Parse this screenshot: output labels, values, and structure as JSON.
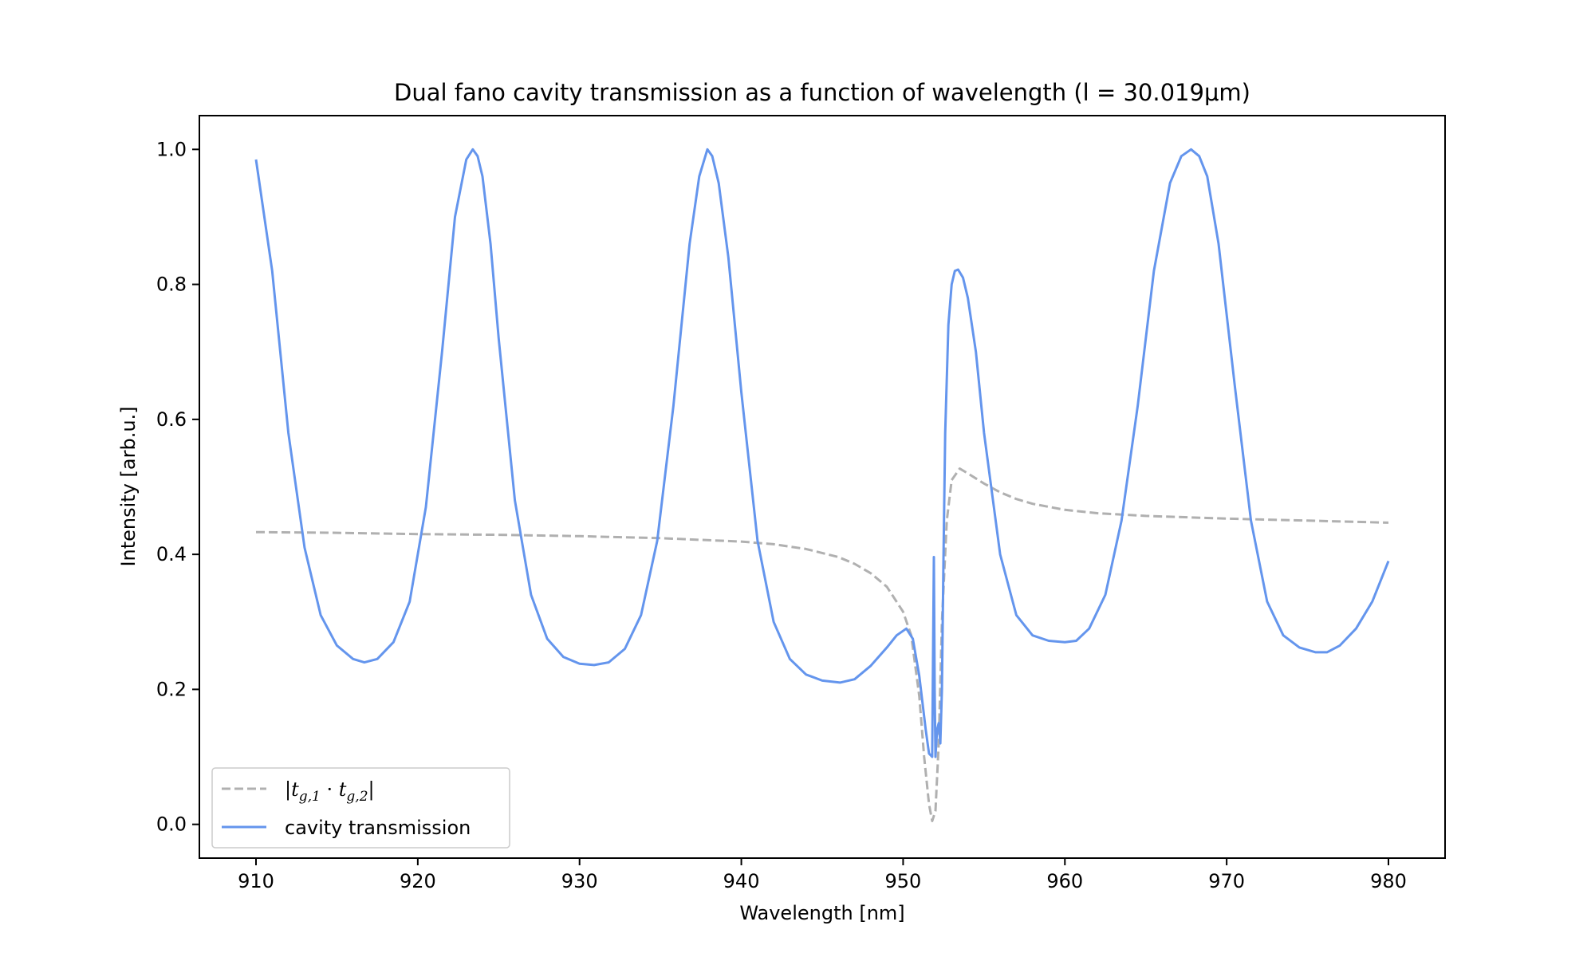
{
  "chart_data": {
    "type": "line",
    "title": "Dual fano cavity transmission as a function of wavelength (l = 30.019μm)",
    "xlabel": "Wavelength [nm]",
    "ylabel": "Intensity [arb.u.]",
    "xlim": [
      906.5,
      983.5
    ],
    "ylim": [
      -0.05,
      1.05
    ],
    "xticks": [
      910,
      920,
      930,
      940,
      950,
      960,
      970,
      980
    ],
    "xtick_labels": [
      "910",
      "920",
      "930",
      "940",
      "950",
      "960",
      "970",
      "980"
    ],
    "yticks": [
      0.0,
      0.2,
      0.4,
      0.6,
      0.8,
      1.0
    ],
    "ytick_labels": [
      "0.0",
      "0.2",
      "0.4",
      "0.6",
      "0.8",
      "1.0"
    ],
    "grid": false,
    "legend_position": "lower-left",
    "series": [
      {
        "name": "|t_{g,1} · t_{g,2}|",
        "legend_parts": {
          "bar_left": "|",
          "t1": "t",
          "sub1": "g,1",
          "dot": " · ",
          "t2": "t",
          "sub2": "g,2",
          "bar_right": "|"
        },
        "color": "#b0b0b0",
        "style": "dashed",
        "x": [
          910,
          915,
          920,
          925,
          930,
          935,
          940,
          942,
          944,
          946,
          947,
          948,
          949,
          950,
          950.5,
          951,
          951.3,
          951.6,
          951.8,
          952.0,
          952.2,
          952.4,
          952.7,
          953.0,
          953.5,
          954,
          955,
          956,
          957,
          958,
          960,
          962,
          965,
          970,
          975,
          980
        ],
        "y": [
          0.433,
          0.432,
          0.43,
          0.429,
          0.427,
          0.424,
          0.419,
          0.415,
          0.408,
          0.396,
          0.386,
          0.372,
          0.352,
          0.315,
          0.28,
          0.19,
          0.1,
          0.03,
          0.005,
          0.02,
          0.12,
          0.3,
          0.45,
          0.51,
          0.527,
          0.52,
          0.505,
          0.492,
          0.482,
          0.475,
          0.466,
          0.461,
          0.457,
          0.453,
          0.45,
          0.447
        ]
      },
      {
        "name": "cavity transmission",
        "color": "#6495ed",
        "style": "solid",
        "x": [
          910,
          911,
          912,
          913,
          914,
          915,
          916,
          916.7,
          917.5,
          918.5,
          919.5,
          920.5,
          921.5,
          922.3,
          923,
          923.4,
          923.7,
          924,
          924.5,
          925,
          926,
          927,
          928,
          929,
          930,
          930.9,
          931.8,
          932.8,
          933.8,
          934.8,
          935.8,
          936.8,
          937.4,
          937.9,
          938.2,
          938.6,
          939.2,
          940,
          941,
          942,
          943,
          944,
          945,
          946.1,
          947,
          948,
          949,
          949.6,
          950.2,
          950.6,
          951,
          951.4,
          951.6,
          951.8,
          951.9,
          951.95,
          952.0,
          952.1,
          952.2,
          952.3,
          952.4,
          952.5,
          952.6,
          952.8,
          953.0,
          953.2,
          953.4,
          953.7,
          954,
          954.5,
          955,
          956,
          957,
          958,
          959,
          960,
          960.7,
          961.5,
          962.5,
          963.5,
          964.5,
          965.5,
          966.5,
          967.2,
          967.8,
          968.3,
          968.8,
          969.5,
          970.5,
          971.5,
          972.5,
          973.5,
          974.5,
          975.5,
          976.2,
          977,
          978,
          979,
          980
        ],
        "y": [
          0.985,
          0.82,
          0.58,
          0.41,
          0.31,
          0.265,
          0.245,
          0.24,
          0.245,
          0.27,
          0.33,
          0.47,
          0.7,
          0.9,
          0.985,
          1.0,
          0.99,
          0.96,
          0.86,
          0.72,
          0.48,
          0.34,
          0.275,
          0.248,
          0.238,
          0.236,
          0.24,
          0.26,
          0.31,
          0.42,
          0.62,
          0.86,
          0.96,
          1.0,
          0.99,
          0.95,
          0.84,
          0.64,
          0.42,
          0.3,
          0.245,
          0.222,
          0.213,
          0.21,
          0.215,
          0.235,
          0.262,
          0.28,
          0.29,
          0.275,
          0.22,
          0.14,
          0.105,
          0.1,
          0.396,
          0.2,
          0.1,
          0.14,
          0.15,
          0.12,
          0.2,
          0.4,
          0.58,
          0.74,
          0.8,
          0.82,
          0.822,
          0.81,
          0.78,
          0.7,
          0.58,
          0.4,
          0.31,
          0.28,
          0.272,
          0.27,
          0.272,
          0.29,
          0.34,
          0.45,
          0.62,
          0.82,
          0.95,
          0.99,
          1.0,
          0.99,
          0.96,
          0.86,
          0.65,
          0.45,
          0.33,
          0.28,
          0.262,
          0.255,
          0.255,
          0.265,
          0.29,
          0.33,
          0.39
        ]
      }
    ]
  }
}
